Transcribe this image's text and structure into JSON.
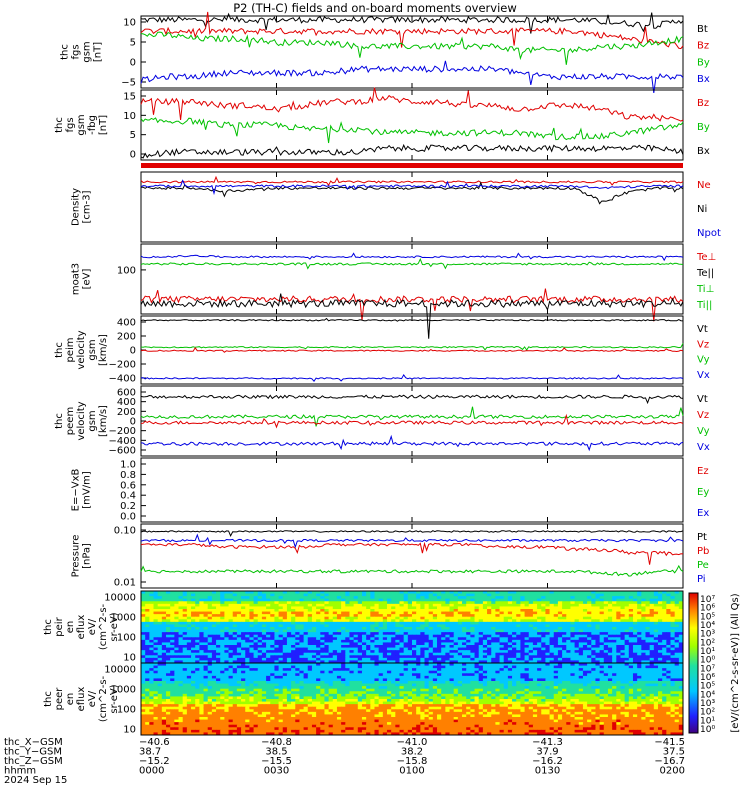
{
  "title": "P2 (TH-C) fields and on-board moments overview",
  "panels": [
    {
      "id": "fgs",
      "ylabel": [
        "thc",
        "fgs",
        "gsm",
        "[nT]"
      ],
      "yticks": [
        "10",
        "5",
        "0",
        "−5"
      ],
      "legend": [
        {
          "label": "Bt",
          "color": "#000000"
        },
        {
          "label": "Bz",
          "color": "#e00000"
        },
        {
          "label": "By",
          "color": "#00c000"
        },
        {
          "label": "Bx",
          "color": "#0000e0"
        }
      ]
    },
    {
      "id": "fgs2",
      "ylabel": [
        "thc",
        "fgs",
        "gsm",
        "-fbg",
        "[nT]"
      ],
      "yticks": [
        "15",
        "10",
        "5",
        "0"
      ],
      "legend": [
        {
          "label": "Bz",
          "color": "#e00000"
        },
        {
          "label": "By",
          "color": "#00c000"
        },
        {
          "label": "Bx",
          "color": "#000000"
        }
      ]
    },
    {
      "id": "density",
      "ylabel": [
        "Density",
        "[cm-3]"
      ],
      "yticks": [],
      "legend": [
        {
          "label": "Ne",
          "color": "#e00000"
        },
        {
          "label": "Ni",
          "color": "#000000"
        },
        {
          "label": "Npot",
          "color": "#0000e0"
        }
      ]
    },
    {
      "id": "temp",
      "ylabel": [
        "moat3",
        "[eV]"
      ],
      "yticks": [
        "100"
      ],
      "legend": [
        {
          "label": "Te⊥",
          "color": "#e00000"
        },
        {
          "label": "Te||",
          "color": "#000000"
        },
        {
          "label": "Ti⊥",
          "color": "#00c000"
        },
        {
          "label": "Ti||",
          "color": "#00c000"
        }
      ]
    },
    {
      "id": "peim",
      "ylabel": [
        "thc",
        "peim",
        "velocity",
        "gsm",
        "[km/s]"
      ],
      "yticks": [
        "400",
        "200",
        "0",
        "−200",
        "−400"
      ],
      "legend": [
        {
          "label": "Vt",
          "color": "#000000"
        },
        {
          "label": "Vz",
          "color": "#e00000"
        },
        {
          "label": "Vy",
          "color": "#00c000"
        },
        {
          "label": "Vx",
          "color": "#0000e0"
        }
      ]
    },
    {
      "id": "peem",
      "ylabel": [
        "thc",
        "peem",
        "velocity",
        "gsm",
        "[km/s]"
      ],
      "yticks": [
        "600",
        "400",
        "200",
        "0",
        "−200",
        "−400",
        "−600"
      ],
      "legend": [
        {
          "label": "Vt",
          "color": "#000000"
        },
        {
          "label": "Vz",
          "color": "#e00000"
        },
        {
          "label": "Vy",
          "color": "#00c000"
        },
        {
          "label": "Vx",
          "color": "#0000e0"
        }
      ]
    },
    {
      "id": "efield",
      "ylabel": [
        "E=−VxB",
        "[mV/m]"
      ],
      "yticks": [
        "1.0",
        "0.8",
        "0.6",
        "0.4",
        "0.2",
        "0.0"
      ],
      "legend": [
        {
          "label": "Ez",
          "color": "#e00000"
        },
        {
          "label": "Ey",
          "color": "#00c000"
        },
        {
          "label": "Ex",
          "color": "#0000e0"
        }
      ]
    },
    {
      "id": "pressure",
      "ylabel": [
        "Pressure",
        "[nPa]"
      ],
      "yticks": [
        "0.10",
        "0.01"
      ],
      "legend": [
        {
          "label": "Pt",
          "color": "#000000"
        },
        {
          "label": "Pb",
          "color": "#e00000"
        },
        {
          "label": "Pe",
          "color": "#00c000"
        },
        {
          "label": "Pi",
          "color": "#0000e0"
        }
      ]
    },
    {
      "id": "peir",
      "ylabel": [
        "thc",
        "peir",
        "en",
        "eflux",
        "eV/",
        "(cm^2-s-",
        "sr-eV)"
      ],
      "yticks": [
        "10000",
        "1000",
        "100",
        "10"
      ],
      "legend": []
    },
    {
      "id": "peer",
      "ylabel": [
        "thc",
        "peer",
        "en",
        "eflux",
        "eV/",
        "(cm^2-s-",
        "sr-eV)"
      ],
      "yticks": [
        "10000",
        "1000",
        "100",
        "10"
      ],
      "legend": []
    }
  ],
  "colorbar": {
    "ticks": [
      "10⁷",
      "10⁶",
      "10⁵",
      "10⁴",
      "10³",
      "10²",
      "10¹",
      "10⁰",
      "10⁷",
      "10⁶",
      "10⁵",
      "10⁴",
      "10³",
      "10²",
      "10¹",
      "10⁰"
    ],
    "label": "[eV/(cm^2-s-sr-eV)] (All Qs)"
  },
  "footer": {
    "rows": [
      {
        "name": "thc_X−GSM",
        "values": [
          "−40.6",
          "−40.8",
          "−41.0",
          "−41.3",
          "−41.5"
        ]
      },
      {
        "name": "thc_Y−GSM",
        "values": [
          "38.7",
          "38.5",
          "38.2",
          "37.9",
          "37.5"
        ]
      },
      {
        "name": "thc_Z−GSM",
        "values": [
          "−15.2",
          "−15.5",
          "−15.8",
          "−16.2",
          "−16.7"
        ]
      },
      {
        "name": "hhmm",
        "values": [
          "0000",
          "0030",
          "0100",
          "0130",
          "0200"
        ]
      }
    ],
    "date": "2024 Sep 15"
  },
  "chart_data": {
    "type": "line",
    "x_unit": "hhmm",
    "x_ticks": [
      "0000",
      "0030",
      "0100",
      "0130",
      "0200"
    ],
    "panels": [
      {
        "id": "fgs",
        "ylim": [
          -8,
          11
        ],
        "series": [
          {
            "name": "Bt",
            "values": [
              10,
              10,
              10,
              10,
              10,
              10,
              10,
              10,
              10,
              10,
              10,
              10,
              10,
              10,
              10,
              10,
              10,
              9.5,
              9,
              8.5,
              10
            ]
          },
          {
            "name": "Bz",
            "values": [
              7,
              7,
              7,
              7,
              7,
              7,
              7,
              7,
              7,
              7,
              7,
              7,
              7,
              7,
              7,
              7,
              7,
              6,
              5,
              4,
              3
            ]
          },
          {
            "name": "By",
            "values": [
              6,
              6,
              5,
              5,
              5,
              4,
              4,
              4,
              3,
              3,
              3,
              3,
              3,
              3,
              2,
              2,
              2,
              3,
              3,
              4,
              5
            ]
          },
          {
            "name": "Bx",
            "values": [
              -6,
              -5,
              -5,
              -4,
              -4,
              -4,
              -4,
              -4,
              -3,
              -3,
              -3,
              -3,
              -3,
              -3,
              -4,
              -5,
              -5,
              -5,
              -5,
              -5,
              -5
            ]
          }
        ]
      },
      {
        "id": "fgs2",
        "ylim": [
          -2,
          16
        ],
        "series": [
          {
            "name": "Bz",
            "values": [
              13,
              13,
              13,
              12,
              12,
              11,
              12,
              13,
              13,
              14,
              13,
              13,
              12,
              12,
              11,
              12,
              12,
              11,
              9,
              9,
              8
            ]
          },
          {
            "name": "By",
            "values": [
              8,
              8,
              8,
              7,
              7,
              7,
              6,
              6,
              6,
              5,
              5,
              5,
              5,
              5,
              5,
              4,
              4,
              4,
              5,
              6,
              7
            ]
          },
          {
            "name": "Bx",
            "values": [
              -1,
              0,
              0,
              0,
              0,
              0,
              0,
              0,
              0,
              1,
              1,
              1,
              1,
              1,
              1,
              1,
              1,
              1,
              1,
              1,
              0
            ]
          }
        ]
      },
      {
        "id": "density",
        "series": [
          {
            "name": "Ne",
            "values": [
              4,
              4,
              4,
              4,
              4,
              4,
              4,
              4,
              4,
              4,
              4,
              4,
              4,
              4,
              4,
              4,
              4,
              4,
              4,
              4,
              4
            ]
          },
          {
            "name": "Ni",
            "values": [
              3,
              3,
              3,
              2.6,
              2.8,
              3,
              3,
              3,
              3,
              3,
              3,
              3,
              3,
              3,
              3,
              3,
              3,
              1.5,
              2.5,
              3,
              3
            ]
          },
          {
            "name": "Npot",
            "values": [
              3.3,
              3.3,
              3.3,
              3.3,
              3.3,
              3.3,
              3.3,
              3.3,
              3.3,
              3.3,
              3.3,
              3.3,
              3.3,
              3.3,
              3.3,
              3.3,
              3.3,
              3,
              3.2,
              3.3,
              3.3
            ]
          }
        ]
      },
      {
        "id": "temp",
        "series": [
          {
            "name": "Ti⊥",
            "values": [
              150,
              150,
              155,
              150,
              150,
              150,
              150,
              150,
              150,
              150,
              150,
              150,
              150,
              150,
              150,
              150,
              150,
              150,
              150,
              150,
              150
            ]
          },
          {
            "name": "Ti||",
            "values": [
              120,
              120,
              120,
              120,
              120,
              120,
              120,
              120,
              120,
              120,
              120,
              120,
              120,
              120,
              120,
              120,
              120,
              120,
              120,
              120,
              120
            ]
          },
          {
            "name": "Te⊥",
            "values": [
              40,
              40,
              40,
              40,
              40,
              40,
              40,
              40,
              40,
              40,
              40,
              40,
              40,
              40,
              40,
              40,
              40,
              40,
              40,
              40,
              40
            ]
          },
          {
            "name": "Te||",
            "values": [
              35,
              35,
              35,
              35,
              35,
              35,
              35,
              35,
              35,
              35,
              35,
              35,
              35,
              35,
              35,
              35,
              35,
              35,
              35,
              35,
              35
            ]
          }
        ]
      },
      {
        "id": "peim",
        "ylim": [
          -480,
          480
        ],
        "series": [
          {
            "name": "Vt",
            "values": [
              420,
              420,
              420,
              420,
              420,
              420,
              420,
              420,
              420,
              420,
              420,
              420,
              420,
              420,
              420,
              420,
              420,
              420,
              420,
              420,
              420
            ]
          },
          {
            "name": "Vy",
            "values": [
              40,
              40,
              40,
              40,
              40,
              40,
              40,
              40,
              40,
              40,
              40,
              40,
              40,
              40,
              40,
              40,
              40,
              40,
              40,
              40,
              40
            ]
          },
          {
            "name": "Vz",
            "values": [
              -10,
              -10,
              -10,
              -10,
              -10,
              -10,
              -10,
              -10,
              -10,
              -10,
              -10,
              -10,
              -10,
              -10,
              -10,
              -10,
              -10,
              -10,
              -10,
              -10,
              -10
            ]
          },
          {
            "name": "Vx",
            "values": [
              -400,
              -400,
              -400,
              -400,
              -400,
              -400,
              -400,
              -400,
              -400,
              -400,
              -400,
              -400,
              -400,
              -400,
              -400,
              -400,
              -400,
              -400,
              -400,
              -400,
              -400
            ]
          }
        ]
      },
      {
        "id": "peem",
        "ylim": [
          -650,
          650
        ],
        "series": [
          {
            "name": "Vt",
            "values": [
              450,
              450,
              450,
              450,
              450,
              450,
              450,
              450,
              450,
              450,
              450,
              450,
              450,
              450,
              450,
              450,
              450,
              450,
              450,
              450,
              450
            ]
          },
          {
            "name": "Vy",
            "values": [
              80,
              80,
              80,
              80,
              80,
              80,
              80,
              80,
              80,
              80,
              80,
              80,
              80,
              80,
              80,
              80,
              80,
              80,
              80,
              80,
              80
            ]
          },
          {
            "name": "Vz",
            "values": [
              -30,
              -30,
              -30,
              -30,
              -30,
              -30,
              -30,
              -30,
              -30,
              -30,
              -30,
              -30,
              -30,
              -30,
              -30,
              -30,
              -30,
              -30,
              -30,
              -30,
              -30
            ]
          },
          {
            "name": "Vx",
            "values": [
              -420,
              -420,
              -420,
              -420,
              -420,
              -420,
              -420,
              -420,
              -420,
              -420,
              -420,
              -420,
              -420,
              -420,
              -420,
              -420,
              -420,
              -420,
              -420,
              -420,
              -420
            ]
          }
        ]
      },
      {
        "id": "efield",
        "ylim": [
          0,
          1
        ],
        "series": []
      },
      {
        "id": "pressure",
        "series": [
          {
            "name": "Pt",
            "values": [
              0.09,
              0.09,
              0.09,
              0.09,
              0.09,
              0.09,
              0.09,
              0.09,
              0.09,
              0.09,
              0.09,
              0.09,
              0.09,
              0.09,
              0.09,
              0.09,
              0.09,
              0.09,
              0.09,
              0.09,
              0.09
            ]
          },
          {
            "name": "Pi",
            "values": [
              0.06,
              0.06,
              0.06,
              0.06,
              0.06,
              0.06,
              0.06,
              0.06,
              0.06,
              0.06,
              0.06,
              0.06,
              0.06,
              0.06,
              0.06,
              0.06,
              0.06,
              0.06,
              0.06,
              0.06,
              0.06
            ]
          },
          {
            "name": "Pb",
            "values": [
              0.05,
              0.05,
              0.05,
              0.045,
              0.045,
              0.045,
              0.045,
              0.05,
              0.05,
              0.05,
              0.05,
              0.05,
              0.05,
              0.045,
              0.045,
              0.045,
              0.04,
              0.04,
              0.035,
              0.035,
              0.03
            ]
          },
          {
            "name": "Pe",
            "values": [
              0.015,
              0.015,
              0.015,
              0.015,
              0.015,
              0.015,
              0.015,
              0.015,
              0.015,
              0.015,
              0.015,
              0.015,
              0.015,
              0.015,
              0.015,
              0.015,
              0.015,
              0.014,
              0.013,
              0.015,
              0.015
            ]
          }
        ]
      }
    ]
  }
}
